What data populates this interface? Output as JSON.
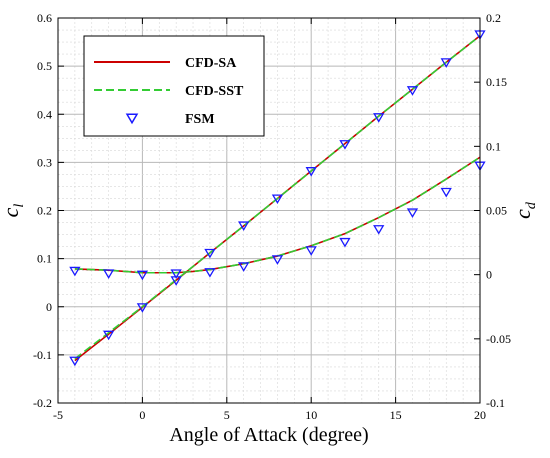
{
  "chart_data": {
    "type": "line",
    "xlabel": "Angle of Attack (degree)",
    "ylabel": {
      "base": "c",
      "sub": "l"
    },
    "y2label": {
      "base": "c",
      "sub": "d"
    },
    "xlim": [
      -5,
      20
    ],
    "ylim": [
      -0.2,
      0.6
    ],
    "y2lim": [
      -0.1,
      0.2
    ],
    "xticks": [
      "-5",
      "0",
      "5",
      "10",
      "15",
      "20"
    ],
    "yticks": [
      "-0.2",
      "-0.1",
      "0",
      "0.1",
      "0.2",
      "0.3",
      "0.4",
      "0.5",
      "0.6"
    ],
    "y2ticks": [
      "-0.1",
      "-0.05",
      "0",
      "0.05",
      "0.1",
      "0.15",
      "0.2"
    ],
    "grid": true,
    "legend_position": "top-left",
    "legend": [
      {
        "label": "CFD-SA",
        "color": "#cc0000",
        "style": "solid"
      },
      {
        "label": "CFD-SST",
        "color": "#33cc33",
        "style": "dashed"
      },
      {
        "label": "FSM",
        "color": "#1a1aff",
        "style": "marker-triangle-down"
      }
    ],
    "series": [
      {
        "name": "CFD-SA",
        "axis": "left",
        "color": "#cc0000",
        "x": [
          -4,
          -2,
          0,
          2,
          4,
          6,
          8,
          10,
          12,
          14,
          16,
          18,
          20
        ],
        "y": [
          -0.112,
          -0.057,
          -0.001,
          0.055,
          0.112,
          0.168,
          0.225,
          0.282,
          0.339,
          0.396,
          0.452,
          0.508,
          0.563
        ]
      },
      {
        "name": "CFD-SST",
        "axis": "left",
        "color": "#33cc33",
        "x": [
          -4,
          -2,
          0,
          2,
          4,
          6,
          8,
          10,
          12,
          14,
          16,
          18,
          20
        ],
        "y": [
          -0.108,
          -0.054,
          0.0,
          0.056,
          0.112,
          0.168,
          0.225,
          0.282,
          0.339,
          0.396,
          0.452,
          0.508,
          0.563
        ]
      },
      {
        "name": "FSM",
        "axis": "left",
        "color": "#1a1aff",
        "x": [
          -4,
          -2,
          0,
          2,
          4,
          6,
          8,
          10,
          12,
          14,
          16,
          18,
          20
        ],
        "y": [
          -0.112,
          -0.058,
          -0.001,
          0.055,
          0.112,
          0.169,
          0.225,
          0.282,
          0.338,
          0.394,
          0.45,
          0.508,
          0.566
        ]
      },
      {
        "name": "CFD-SA",
        "axis": "right",
        "color": "#cc0000",
        "x": [
          -4,
          -2,
          0,
          2,
          3,
          4,
          6,
          8,
          10,
          12,
          14,
          16,
          18,
          20
        ],
        "y": [
          0.0045,
          0.0035,
          0.0015,
          0.0015,
          0.0025,
          0.004,
          0.0085,
          0.0145,
          0.0225,
          0.032,
          0.0445,
          0.058,
          0.0745,
          0.0915
        ]
      },
      {
        "name": "CFD-SST",
        "axis": "right",
        "color": "#33cc33",
        "x": [
          -4,
          -2,
          0,
          2,
          3,
          4,
          6,
          8,
          10,
          12,
          14,
          16,
          18,
          20
        ],
        "y": [
          0.0045,
          0.0035,
          0.0015,
          0.0015,
          0.0025,
          0.004,
          0.0085,
          0.0145,
          0.0225,
          0.032,
          0.0445,
          0.058,
          0.0745,
          0.0915
        ]
      },
      {
        "name": "FSM",
        "axis": "right",
        "color": "#1a1aff",
        "x": [
          -4,
          -2,
          0,
          2,
          4,
          6,
          8,
          10,
          12,
          14,
          16,
          18,
          20
        ],
        "y": [
          0.003,
          0.001,
          0.0,
          0.001,
          0.002,
          0.0065,
          0.012,
          0.019,
          0.0255,
          0.0355,
          0.0485,
          0.0645,
          0.085
        ]
      }
    ]
  }
}
